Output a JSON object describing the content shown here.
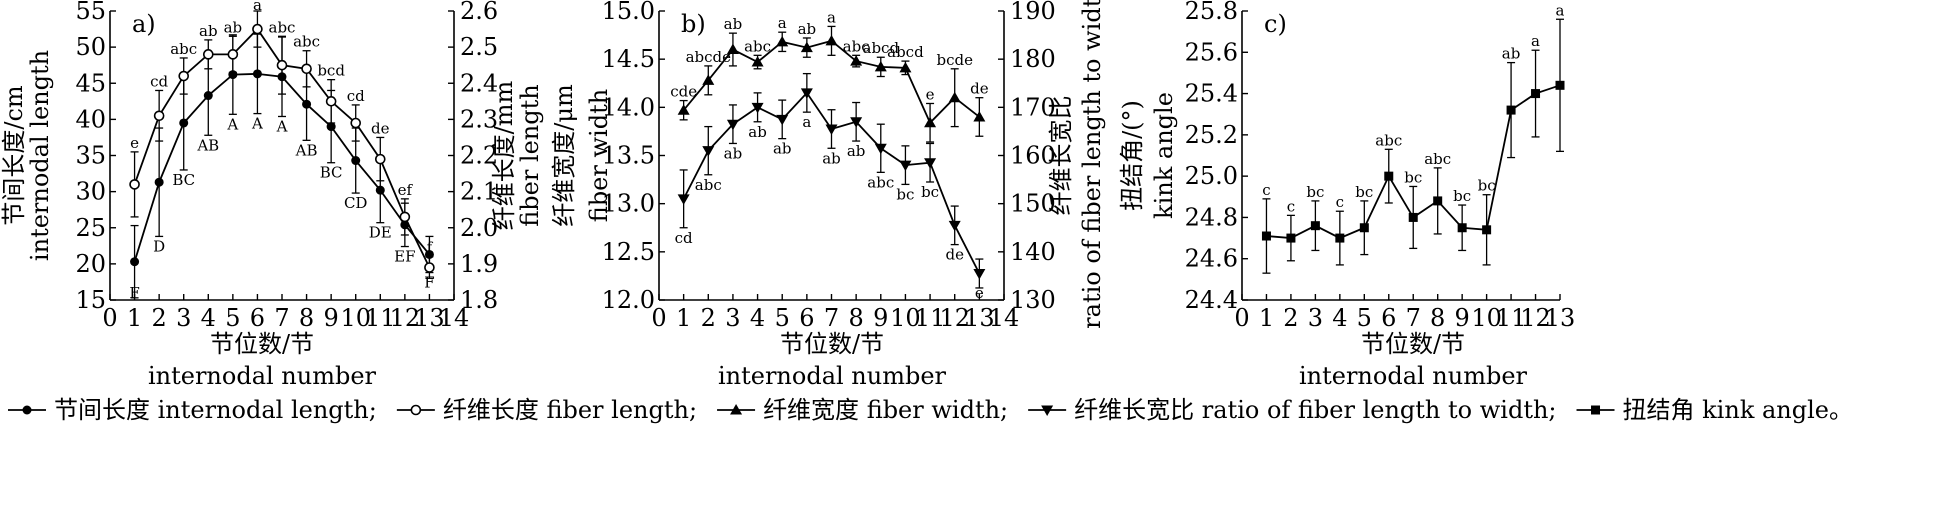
{
  "legend": [
    {
      "marker": "filled-circle",
      "label": "节间长度 internodal length;"
    },
    {
      "marker": "open-circle",
      "label": "纤维长度 fiber length;"
    },
    {
      "marker": "filled-triangle",
      "label": "纤维宽度 fiber width;"
    },
    {
      "marker": "filled-down-triangle",
      "label": "纤维长宽比 ratio of fiber length to width;"
    },
    {
      "marker": "filled-square",
      "label": "扭结角 kink angle。"
    }
  ],
  "chart_data": [
    {
      "type": "line",
      "panel_label": "a)",
      "x": [
        1,
        2,
        3,
        4,
        5,
        6,
        7,
        8,
        9,
        10,
        11,
        12,
        13
      ],
      "xlim": [
        0,
        14
      ],
      "xticks": [
        0,
        1,
        2,
        3,
        4,
        5,
        6,
        7,
        8,
        9,
        10,
        11,
        12,
        13,
        14
      ],
      "xlabel": [
        "节位数/节",
        "internodal number"
      ],
      "ylabel_left": [
        "节间长度/cm",
        "internodal length"
      ],
      "ylim_left": [
        15,
        55
      ],
      "yticks_left": [
        15,
        20,
        25,
        30,
        35,
        40,
        45,
        50,
        55
      ],
      "ylabel_right": [
        "纤维长度/mm",
        "fiber length"
      ],
      "ylim_right": [
        1.8,
        2.6
      ],
      "yticks_right": [
        "1.8",
        "1.9",
        "2.0",
        "2.1",
        "2.2",
        "2.3",
        "2.4",
        "2.5",
        "2.6"
      ],
      "series": [
        {
          "marker": "filled-circle",
          "axis": "left",
          "values": [
            20.3,
            31.3,
            39.5,
            43.3,
            46.2,
            46.3,
            45.9,
            42.1,
            39.0,
            34.3,
            30.2,
            25.4,
            21.3
          ],
          "errors": [
            5,
            7.5,
            6.5,
            5.5,
            5.5,
            5.5,
            5.5,
            5,
            5,
            4.5,
            4.5,
            3,
            2.5
          ],
          "sig": [
            "F",
            "D",
            "BC",
            "AB",
            "A",
            "A",
            "A",
            "AB",
            "BC",
            "CD",
            "DE",
            "EF",
            "F"
          ]
        },
        {
          "marker": "open-circle",
          "axis": "right",
          "values": [
            2.12,
            2.31,
            2.42,
            2.48,
            2.48,
            2.55,
            2.45,
            2.44,
            2.35,
            2.29,
            2.19,
            2.03,
            1.89
          ],
          "errors": [
            0.09,
            0.07,
            0.05,
            0.04,
            0.05,
            0.05,
            0.08,
            0.05,
            0.06,
            0.05,
            0.06,
            0.05,
            0.03
          ],
          "sig": [
            "e",
            "cd",
            "abc",
            "ab",
            "ab",
            "a",
            "abc",
            "abc",
            "bcd",
            "cd",
            "de",
            "ef",
            "f"
          ]
        }
      ]
    },
    {
      "type": "line",
      "panel_label": "b)",
      "x": [
        1,
        2,
        3,
        4,
        5,
        6,
        7,
        8,
        9,
        10,
        11,
        12,
        13
      ],
      "xlim": [
        0,
        14
      ],
      "xticks": [
        0,
        1,
        2,
        3,
        4,
        5,
        6,
        7,
        8,
        9,
        10,
        11,
        12,
        13,
        14
      ],
      "xlabel": [
        "节位数/节",
        "internodal number"
      ],
      "ylabel_left": [
        "纤维宽度/μm",
        "fiber width"
      ],
      "ylim_left": [
        12.0,
        15.0
      ],
      "yticks_left": [
        "12.0",
        "12.5",
        "13.0",
        "13.5",
        "14.0",
        "14.5",
        "15.0"
      ],
      "ylabel_right": [
        "纤维长宽比",
        "ratio of fiber length to width"
      ],
      "ylim_right": [
        130,
        190
      ],
      "yticks_right": [
        130,
        140,
        150,
        160,
        170,
        180,
        190
      ],
      "series": [
        {
          "marker": "filled-triangle",
          "axis": "left",
          "values": [
            13.97,
            14.28,
            14.6,
            14.47,
            14.68,
            14.62,
            14.69,
            14.48,
            14.42,
            14.41,
            13.84,
            14.1,
            13.9
          ],
          "errors": [
            0.1,
            0.15,
            0.17,
            0.07,
            0.1,
            0.1,
            0.15,
            0.06,
            0.1,
            0.07,
            0.2,
            0.3,
            0.2
          ],
          "sig": [
            "cde",
            "abcde",
            "ab",
            "abc",
            "a",
            "ab",
            "a",
            "abc",
            "abcd",
            "abcd",
            "e",
            "bcde",
            "de"
          ]
        },
        {
          "marker": "filled-down-triangle",
          "axis": "right",
          "values": [
            151,
            161,
            166.5,
            170,
            167.5,
            173,
            165.5,
            167,
            161.5,
            158,
            158.5,
            145.5,
            135.5
          ],
          "errors": [
            6,
            5,
            4,
            3,
            4,
            4,
            4,
            4,
            5,
            4,
            4,
            4,
            3
          ],
          "sig": [
            "cd",
            "abc",
            "ab",
            "ab",
            "ab",
            "a",
            "ab",
            "ab",
            "abc",
            "bc",
            "bc",
            "de",
            "e"
          ]
        }
      ]
    },
    {
      "type": "line",
      "panel_label": "c)",
      "x": [
        1,
        2,
        3,
        4,
        5,
        6,
        7,
        8,
        9,
        10,
        11,
        12,
        13
      ],
      "xlim": [
        0,
        13
      ],
      "xticks": [
        0,
        1,
        2,
        3,
        4,
        5,
        6,
        7,
        8,
        9,
        10,
        11,
        12,
        13
      ],
      "xlabel": [
        "节位数/节",
        "internodal number"
      ],
      "ylabel_left": [
        "扭结角/(°)",
        "kink angle"
      ],
      "ylim_left": [
        24.4,
        25.8
      ],
      "yticks_left": [
        "24.4",
        "24.6",
        "24.8",
        "25.0",
        "25.2",
        "25.4",
        "25.6",
        "25.8"
      ],
      "series": [
        {
          "marker": "filled-square",
          "axis": "left",
          "values": [
            24.71,
            24.7,
            24.76,
            24.7,
            24.75,
            25.0,
            24.8,
            24.88,
            24.75,
            24.74,
            25.32,
            25.4,
            25.44
          ],
          "errors": [
            0.18,
            0.11,
            0.12,
            0.13,
            0.13,
            0.13,
            0.15,
            0.16,
            0.11,
            0.17,
            0.23,
            0.21,
            0.32
          ],
          "sig": [
            "c",
            "c",
            "bc",
            "c",
            "bc",
            "abc",
            "bc",
            "abc",
            "bc",
            "bc",
            "ab",
            "a",
            "a"
          ]
        }
      ]
    }
  ]
}
